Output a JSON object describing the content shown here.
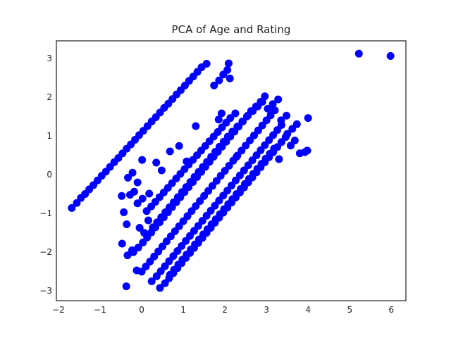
{
  "chart_data": {
    "type": "scatter",
    "title": "PCA of Age and Rating",
    "xlabel": "",
    "ylabel": "",
    "xlim": [
      -2.05,
      6.35
    ],
    "ylim": [
      -3.25,
      3.45
    ],
    "xticks": [
      -2,
      -1,
      0,
      1,
      2,
      3,
      4,
      5,
      6
    ],
    "yticks": [
      -3,
      -2,
      -1,
      0,
      1,
      2,
      3
    ],
    "grid": false,
    "legend": "none",
    "marker_color": "#0000ff",
    "series": [
      {
        "points": [
          [
            -1.68,
            -0.86
          ],
          [
            -1.56,
            -0.73
          ],
          [
            -1.46,
            -0.6
          ],
          [
            -1.36,
            -0.5
          ],
          [
            -1.26,
            -0.38
          ],
          [
            -1.16,
            -0.27
          ],
          [
            -1.06,
            -0.15
          ],
          [
            -0.96,
            -0.03
          ],
          [
            -0.86,
            0.08
          ],
          [
            -0.76,
            0.2
          ],
          [
            -0.66,
            0.32
          ],
          [
            -0.56,
            0.43
          ],
          [
            -0.46,
            0.55
          ],
          [
            -0.36,
            0.67
          ],
          [
            -0.26,
            0.78
          ],
          [
            -0.16,
            0.9
          ],
          [
            -0.06,
            1.02
          ],
          [
            0.04,
            1.13
          ],
          [
            0.14,
            1.25
          ],
          [
            0.24,
            1.37
          ],
          [
            0.34,
            1.48
          ],
          [
            0.44,
            1.6
          ],
          [
            0.54,
            1.72
          ],
          [
            0.64,
            1.83
          ],
          [
            0.74,
            1.95
          ],
          [
            0.84,
            2.07
          ],
          [
            0.94,
            2.18
          ],
          [
            1.04,
            2.3
          ],
          [
            1.14,
            2.42
          ],
          [
            1.24,
            2.53
          ],
          [
            1.34,
            2.65
          ],
          [
            1.44,
            2.77
          ],
          [
            1.56,
            2.86
          ],
          [
            1.74,
            2.3
          ],
          [
            1.86,
            2.43
          ],
          [
            1.96,
            2.58
          ],
          [
            2.06,
            2.7
          ],
          [
            2.09,
            2.87
          ],
          [
            2.12,
            2.48
          ],
          [
            5.22,
            3.12
          ],
          [
            5.98,
            3.06
          ],
          [
            -0.48,
            -0.55
          ],
          [
            -0.33,
            -0.08
          ],
          [
            -0.22,
            0.05
          ],
          [
            -0.1,
            -0.2
          ],
          [
            0.01,
            0.38
          ],
          [
            -0.43,
            -0.97
          ],
          [
            -0.36,
            -1.28
          ],
          [
            -0.47,
            -1.78
          ],
          [
            -0.34,
            -2.08
          ],
          [
            -0.23,
            -1.95
          ],
          [
            -0.37,
            -2.88
          ],
          [
            -0.28,
            -0.52
          ],
          [
            -0.18,
            -0.44
          ],
          [
            -0.1,
            -0.74
          ],
          [
            0.02,
            -0.62
          ],
          [
            0.12,
            -0.94
          ],
          [
            0.23,
            -0.82
          ],
          [
            0.33,
            -0.7
          ],
          [
            0.43,
            -0.58
          ],
          [
            0.53,
            -0.46
          ],
          [
            0.63,
            -0.34
          ],
          [
            0.73,
            -0.22
          ],
          [
            0.83,
            -0.1
          ],
          [
            0.93,
            0.02
          ],
          [
            1.03,
            0.14
          ],
          [
            1.13,
            0.26
          ],
          [
            1.23,
            0.38
          ],
          [
            1.33,
            0.5
          ],
          [
            1.43,
            0.62
          ],
          [
            1.53,
            0.74
          ],
          [
            1.63,
            0.86
          ],
          [
            1.73,
            0.98
          ],
          [
            1.83,
            1.1
          ],
          [
            1.93,
            1.22
          ],
          [
            2.03,
            1.34
          ],
          [
            2.13,
            1.46
          ],
          [
            2.25,
            1.58
          ],
          [
            0.18,
            -0.49
          ],
          [
            0.35,
            0.31
          ],
          [
            0.48,
            0.11
          ],
          [
            0.68,
            0.6
          ],
          [
            0.9,
            0.74
          ],
          [
            1.08,
            0.34
          ],
          [
            1.3,
            1.25
          ],
          [
            1.85,
            1.42
          ],
          [
            1.92,
            1.58
          ],
          [
            2.28,
            0.46
          ],
          [
            -0.05,
            -1.37
          ],
          [
            0.06,
            -1.5
          ],
          [
            0.16,
            -1.18
          ],
          [
            0.27,
            -1.36
          ],
          [
            0.37,
            -1.23
          ],
          [
            0.47,
            -1.1
          ],
          [
            0.57,
            -0.97
          ],
          [
            0.67,
            -0.84
          ],
          [
            0.77,
            -0.71
          ],
          [
            0.87,
            -0.58
          ],
          [
            0.97,
            -0.45
          ],
          [
            1.07,
            -0.32
          ],
          [
            1.17,
            -0.19
          ],
          [
            1.27,
            -0.06
          ],
          [
            1.37,
            0.07
          ],
          [
            1.47,
            0.2
          ],
          [
            1.57,
            0.33
          ],
          [
            1.67,
            0.46
          ],
          [
            1.77,
            0.59
          ],
          [
            1.87,
            0.72
          ],
          [
            1.97,
            0.85
          ],
          [
            2.07,
            0.98
          ],
          [
            2.18,
            1.11
          ],
          [
            2.3,
            1.24
          ],
          [
            2.42,
            1.37
          ],
          [
            2.53,
            1.5
          ],
          [
            2.63,
            1.64
          ],
          [
            2.75,
            1.76
          ],
          [
            2.86,
            1.88
          ],
          [
            2.96,
            2.02
          ],
          [
            -0.2,
            -2.0
          ],
          [
            -0.08,
            -1.88
          ],
          [
            0.03,
            -1.75
          ],
          [
            0.13,
            -1.62
          ],
          [
            0.23,
            -1.49
          ],
          [
            0.33,
            -1.36
          ],
          [
            0.43,
            -1.23
          ],
          [
            0.53,
            -1.1
          ],
          [
            0.63,
            -0.97
          ],
          [
            0.73,
            -0.84
          ],
          [
            0.83,
            -0.71
          ],
          [
            0.93,
            -0.58
          ],
          [
            1.03,
            -0.45
          ],
          [
            1.13,
            -0.32
          ],
          [
            1.23,
            -0.19
          ],
          [
            1.33,
            -0.06
          ],
          [
            1.43,
            0.07
          ],
          [
            1.53,
            0.2
          ],
          [
            1.63,
            0.33
          ],
          [
            1.73,
            0.46
          ],
          [
            1.83,
            0.59
          ],
          [
            1.93,
            0.72
          ],
          [
            2.03,
            0.85
          ],
          [
            2.13,
            0.98
          ],
          [
            2.23,
            1.11
          ],
          [
            2.33,
            1.24
          ],
          [
            2.43,
            1.37
          ],
          [
            2.55,
            1.52
          ],
          [
            2.67,
            1.64
          ],
          [
            2.79,
            1.76
          ],
          [
            2.9,
            1.88
          ],
          [
            3.03,
            1.7
          ],
          [
            3.15,
            1.82
          ],
          [
            3.28,
            1.94
          ],
          [
            -0.12,
            -2.47
          ],
          [
            0.0,
            -2.5
          ],
          [
            0.1,
            -2.37
          ],
          [
            0.2,
            -2.24
          ],
          [
            0.3,
            -2.11
          ],
          [
            0.4,
            -1.98
          ],
          [
            0.5,
            -1.85
          ],
          [
            0.6,
            -1.72
          ],
          [
            0.7,
            -1.59
          ],
          [
            0.8,
            -1.46
          ],
          [
            0.9,
            -1.33
          ],
          [
            1.0,
            -1.2
          ],
          [
            1.1,
            -1.07
          ],
          [
            1.2,
            -0.94
          ],
          [
            1.3,
            -0.81
          ],
          [
            1.4,
            -0.68
          ],
          [
            1.5,
            -0.55
          ],
          [
            1.6,
            -0.42
          ],
          [
            1.7,
            -0.29
          ],
          [
            1.8,
            -0.16
          ],
          [
            1.9,
            -0.03
          ],
          [
            2.0,
            0.1
          ],
          [
            2.1,
            0.23
          ],
          [
            2.2,
            0.36
          ],
          [
            2.3,
            0.49
          ],
          [
            2.4,
            0.62
          ],
          [
            2.5,
            0.75
          ],
          [
            2.6,
            0.88
          ],
          [
            2.7,
            1.01
          ],
          [
            2.8,
            1.14
          ],
          [
            2.9,
            1.27
          ],
          [
            3.0,
            1.4
          ],
          [
            3.1,
            1.53
          ],
          [
            3.2,
            1.66
          ],
          [
            3.35,
            1.4
          ],
          [
            3.48,
            1.52
          ],
          [
            0.24,
            -2.75
          ],
          [
            0.36,
            -2.62
          ],
          [
            0.46,
            -2.49
          ],
          [
            0.56,
            -2.36
          ],
          [
            0.66,
            -2.23
          ],
          [
            0.76,
            -2.1
          ],
          [
            0.86,
            -1.97
          ],
          [
            0.96,
            -1.84
          ],
          [
            1.06,
            -1.71
          ],
          [
            1.16,
            -1.58
          ],
          [
            1.26,
            -1.45
          ],
          [
            1.36,
            -1.32
          ],
          [
            1.46,
            -1.19
          ],
          [
            1.56,
            -1.06
          ],
          [
            1.66,
            -0.93
          ],
          [
            1.76,
            -0.8
          ],
          [
            1.86,
            -0.67
          ],
          [
            1.96,
            -0.54
          ],
          [
            2.06,
            -0.41
          ],
          [
            2.16,
            -0.28
          ],
          [
            2.26,
            -0.15
          ],
          [
            2.36,
            -0.02
          ],
          [
            2.46,
            0.11
          ],
          [
            2.56,
            0.24
          ],
          [
            2.66,
            0.37
          ],
          [
            2.76,
            0.5
          ],
          [
            2.86,
            0.63
          ],
          [
            2.96,
            0.76
          ],
          [
            3.06,
            0.89
          ],
          [
            3.16,
            1.02
          ],
          [
            3.26,
            1.15
          ],
          [
            3.36,
            1.28
          ],
          [
            3.5,
            1.05
          ],
          [
            3.62,
            1.18
          ],
          [
            3.73,
            1.3
          ],
          [
            0.44,
            -2.92
          ],
          [
            0.56,
            -2.8
          ],
          [
            0.66,
            -2.67
          ],
          [
            0.76,
            -2.54
          ],
          [
            0.86,
            -2.41
          ],
          [
            0.96,
            -2.28
          ],
          [
            1.06,
            -2.15
          ],
          [
            1.16,
            -2.02
          ],
          [
            1.26,
            -1.89
          ],
          [
            1.36,
            -1.76
          ],
          [
            1.46,
            -1.63
          ],
          [
            1.56,
            -1.5
          ],
          [
            1.66,
            -1.37
          ],
          [
            1.76,
            -1.24
          ],
          [
            1.86,
            -1.11
          ],
          [
            1.96,
            -0.98
          ],
          [
            2.06,
            -0.85
          ],
          [
            2.16,
            -0.72
          ],
          [
            2.26,
            -0.59
          ],
          [
            2.36,
            -0.46
          ],
          [
            2.46,
            -0.33
          ],
          [
            2.56,
            -0.2
          ],
          [
            2.66,
            -0.07
          ],
          [
            2.76,
            0.06
          ],
          [
            2.86,
            0.19
          ],
          [
            2.96,
            0.32
          ],
          [
            3.06,
            0.45
          ],
          [
            3.16,
            0.58
          ],
          [
            3.26,
            0.71
          ],
          [
            3.36,
            0.84
          ],
          [
            3.46,
            0.97
          ],
          [
            3.58,
            0.75
          ],
          [
            3.68,
            0.88
          ],
          [
            3.8,
            0.55
          ],
          [
            3.92,
            0.58
          ],
          [
            3.98,
            0.62
          ],
          [
            4.0,
            1.46
          ],
          [
            0.68,
            -2.58
          ],
          [
            0.78,
            -2.45
          ],
          [
            0.88,
            -2.32
          ],
          [
            0.98,
            -2.19
          ],
          [
            1.08,
            -2.06
          ],
          [
            1.18,
            -1.93
          ],
          [
            1.28,
            -1.8
          ],
          [
            1.38,
            -1.67
          ],
          [
            1.48,
            -1.54
          ],
          [
            1.58,
            -1.41
          ],
          [
            1.68,
            -1.28
          ],
          [
            1.78,
            -1.15
          ],
          [
            1.88,
            -1.02
          ],
          [
            1.98,
            -0.89
          ],
          [
            2.08,
            -0.76
          ],
          [
            2.18,
            -0.63
          ],
          [
            2.28,
            -0.5
          ],
          [
            2.38,
            -0.37
          ],
          [
            2.48,
            -0.24
          ],
          [
            2.58,
            -0.11
          ],
          [
            2.68,
            0.02
          ],
          [
            2.78,
            0.15
          ],
          [
            2.88,
            0.28
          ],
          [
            2.98,
            0.41
          ],
          [
            3.08,
            0.54
          ],
          [
            3.18,
            0.67
          ],
          [
            3.3,
            0.4
          ]
        ]
      }
    ]
  }
}
